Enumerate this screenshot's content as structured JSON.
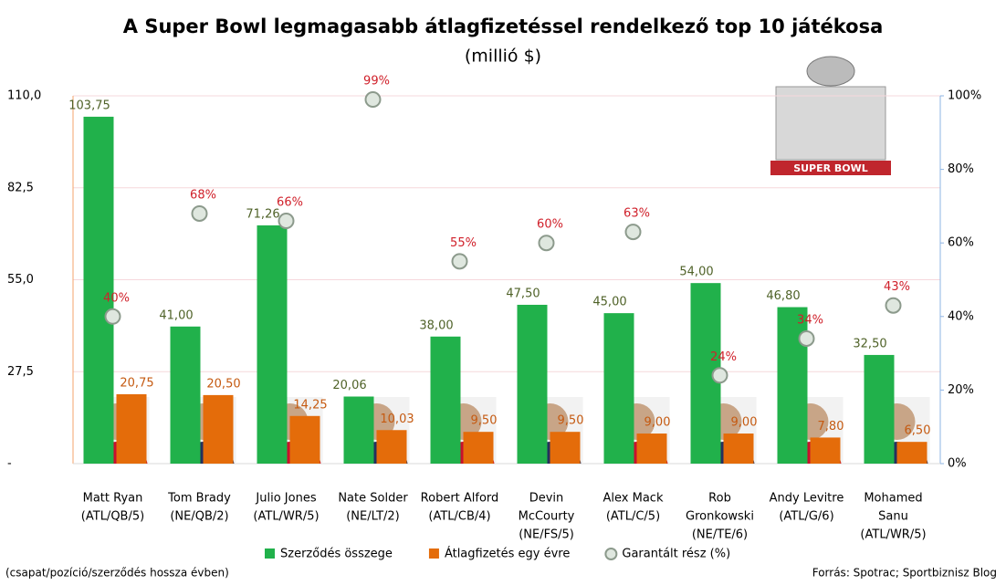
{
  "chart_data": {
    "type": "bar",
    "title": "A Super Bowl legmagasabb átlagfizetéssel rendelkező top 10 játékosa",
    "subtitle": "(millió $)",
    "categories": [
      [
        "Matt Ryan",
        "(ATL/QB/5)"
      ],
      [
        "Tom Brady",
        "(NE/QB/2)"
      ],
      [
        "Julio Jones",
        "(ATL/WR/5)"
      ],
      [
        "Nate Solder",
        "(NE/LT/2)"
      ],
      [
        "Robert Alford",
        "(ATL/CB/4)"
      ],
      [
        "Devin",
        "McCourty",
        "(NE/FS/5)"
      ],
      [
        "Alex Mack",
        "(ATL/C/5)"
      ],
      [
        "Rob",
        "Gronkowski",
        "(NE/TE/6)"
      ],
      [
        "Andy Levitre",
        "(ATL/G/6)"
      ],
      [
        "Mohamed",
        "Sanu",
        "(ATL/WR/5)"
      ]
    ],
    "series": [
      {
        "name": "Szerződés összege",
        "color": "#21b14b",
        "type": "bar",
        "values": [
          103.75,
          41.0,
          71.26,
          20.06,
          38.0,
          47.5,
          45.0,
          54.0,
          46.8,
          32.5
        ],
        "value_labels": [
          "103,75",
          "41,00",
          "71,26",
          "20,06",
          "38,00",
          "47,50",
          "45,00",
          "54,00",
          "46,80",
          "32,50"
        ]
      },
      {
        "name": "Átlagfizetés egy évre",
        "color": "#e46c0a",
        "type": "bar",
        "values": [
          20.75,
          20.5,
          14.25,
          10.03,
          9.5,
          9.5,
          9.0,
          9.0,
          7.8,
          6.5
        ],
        "value_labels": [
          "20,75",
          "20,50",
          "14,25",
          "10,03",
          "9,50",
          "9,50",
          "9,00",
          "9,00",
          "7,80",
          "6,50"
        ]
      },
      {
        "name": "Garantált rész (%)",
        "color": "#8c9a8c",
        "type": "scatter",
        "axis": "y2",
        "values": [
          40,
          68,
          66,
          99,
          55,
          60,
          63,
          24,
          34,
          43
        ],
        "value_labels": [
          "40%",
          "68%",
          "66%",
          "99%",
          "55%",
          "60%",
          "63%",
          "24%",
          "34%",
          "43%"
        ]
      }
    ],
    "ylim": [
      0,
      110
    ],
    "yticks": [
      {
        "value": 0,
        "label": "-"
      },
      {
        "value": 27.5,
        "label": "27,5"
      },
      {
        "value": 55,
        "label": "55,0"
      },
      {
        "value": 82.5,
        "label": "82,5"
      },
      {
        "value": 110,
        "label": "110,0"
      }
    ],
    "y2lim": [
      0,
      100
    ],
    "y2ticks": [
      {
        "value": 0,
        "label": "0%"
      },
      {
        "value": 20,
        "label": "20%"
      },
      {
        "value": 40,
        "label": "40%"
      },
      {
        "value": 60,
        "label": "60%"
      },
      {
        "value": 80,
        "label": "80%"
      },
      {
        "value": 100,
        "label": "100%"
      }
    ],
    "grid": true,
    "legend": "bottom",
    "note": "(csapat/pozíció/szerződés hossza évben)",
    "source": "Forrás: Spotrac; Sportbiznisz Blog"
  }
}
